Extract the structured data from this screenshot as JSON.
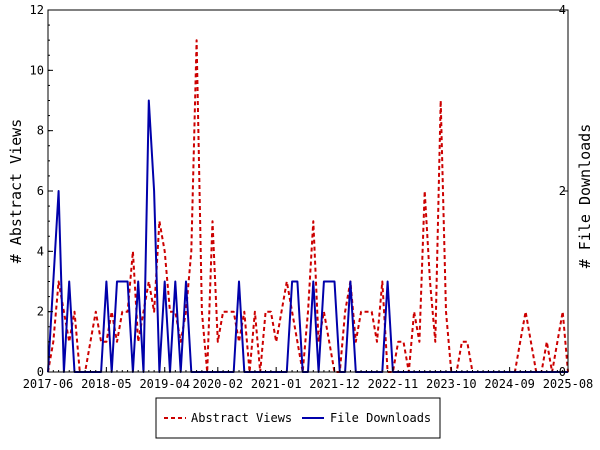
{
  "chart_data": {
    "type": "line",
    "x_ticks": [
      "2017-06",
      "2018-05",
      "2019-04",
      "2020-02",
      "2021-01",
      "2021-12",
      "2022-11",
      "2023-10",
      "2024-09",
      "2025-08"
    ],
    "xlim": [
      "2017-06",
      "2025-08"
    ],
    "left_axis": {
      "label": "# Abstract Views",
      "ylim": [
        0,
        12
      ],
      "ticks": [
        0,
        2,
        4,
        6,
        8,
        10,
        12
      ]
    },
    "right_axis": {
      "label": "# File Downloads",
      "ylim": [
        0,
        4
      ],
      "ticks": [
        0,
        2,
        4
      ]
    },
    "grid": false,
    "legend_position": "bottom-center",
    "series": [
      {
        "name": "Abstract Views",
        "axis": "left",
        "color": "#cc0000",
        "style": "dashed",
        "x": [
          "2017-06",
          "2017-07",
          "2017-08",
          "2017-09",
          "2017-10",
          "2017-11",
          "2017-12",
          "2018-01",
          "2018-02",
          "2018-03",
          "2018-04",
          "2018-05",
          "2018-06",
          "2018-07",
          "2018-08",
          "2018-09",
          "2018-10",
          "2018-11",
          "2018-12",
          "2019-01",
          "2019-02",
          "2019-03",
          "2019-04",
          "2019-05",
          "2019-06",
          "2019-07",
          "2019-08",
          "2019-09",
          "2019-10",
          "2019-11",
          "2019-12",
          "2020-01",
          "2020-02",
          "2020-03",
          "2020-04",
          "2020-05",
          "2020-06",
          "2020-07",
          "2020-08",
          "2020-09",
          "2020-10",
          "2020-11",
          "2020-12",
          "2021-01",
          "2021-02",
          "2021-03",
          "2021-04",
          "2021-05",
          "2021-06",
          "2021-07",
          "2021-08",
          "2021-09",
          "2021-10",
          "2021-11",
          "2021-12",
          "2022-01",
          "2022-02",
          "2022-03",
          "2022-04",
          "2022-05",
          "2022-06",
          "2022-07",
          "2022-08",
          "2022-09",
          "2022-10",
          "2022-11",
          "2022-12",
          "2023-01",
          "2023-02",
          "2023-03",
          "2023-04",
          "2023-05",
          "2023-06",
          "2023-07",
          "2023-08",
          "2023-09",
          "2023-10",
          "2023-11",
          "2023-12",
          "2024-01",
          "2024-02",
          "2024-03",
          "2024-04",
          "2024-05",
          "2024-06",
          "2024-07",
          "2024-08",
          "2024-09",
          "2024-10",
          "2024-11",
          "2024-12",
          "2025-01",
          "2025-02",
          "2025-03",
          "2025-04",
          "2025-05",
          "2025-06",
          "2025-07",
          "2025-08"
        ],
        "values": [
          0,
          1,
          3,
          2,
          1,
          2,
          0,
          0,
          1,
          2,
          1,
          1,
          2,
          1,
          2,
          2,
          4,
          1,
          2,
          3,
          2,
          5,
          4,
          2,
          2,
          1,
          2,
          4,
          11,
          2,
          0,
          5,
          1,
          2,
          2,
          2,
          1,
          2,
          0,
          2,
          0,
          2,
          2,
          1,
          2,
          3,
          2,
          1,
          0,
          2,
          5,
          1,
          2,
          1,
          0,
          0,
          2,
          3,
          1,
          2,
          2,
          2,
          1,
          3,
          0,
          0,
          1,
          1,
          0,
          2,
          1,
          6,
          3,
          1,
          9,
          2,
          0,
          0,
          1,
          1,
          0,
          0,
          0,
          0,
          0,
          0,
          0,
          0,
          0,
          1,
          2,
          1,
          0,
          0,
          1,
          0,
          1,
          2,
          0
        ]
      },
      {
        "name": "File Downloads",
        "axis": "right",
        "color": "#0000aa",
        "style": "solid",
        "x": [
          "2017-06",
          "2017-07",
          "2017-08",
          "2017-09",
          "2017-10",
          "2017-11",
          "2017-12",
          "2018-01",
          "2018-02",
          "2018-03",
          "2018-04",
          "2018-05",
          "2018-06",
          "2018-07",
          "2018-08",
          "2018-09",
          "2018-10",
          "2018-11",
          "2018-12",
          "2019-01",
          "2019-02",
          "2019-03",
          "2019-04",
          "2019-05",
          "2019-06",
          "2019-07",
          "2019-08",
          "2019-09",
          "2019-10",
          "2019-11",
          "2019-12",
          "2020-01",
          "2020-02",
          "2020-03",
          "2020-04",
          "2020-05",
          "2020-06",
          "2020-07",
          "2020-08",
          "2020-09",
          "2020-10",
          "2020-11",
          "2020-12",
          "2021-01",
          "2021-02",
          "2021-03",
          "2021-04",
          "2021-05",
          "2021-06",
          "2021-07",
          "2021-08",
          "2021-09",
          "2021-10",
          "2021-11",
          "2021-12",
          "2022-01",
          "2022-02",
          "2022-03",
          "2022-04",
          "2022-05",
          "2022-06",
          "2022-07",
          "2022-08",
          "2022-09",
          "2022-10",
          "2022-11",
          "2022-12",
          "2023-01",
          "2023-02",
          "2023-03",
          "2023-04",
          "2023-05",
          "2023-06",
          "2023-07",
          "2023-08",
          "2023-09",
          "2023-10",
          "2023-11",
          "2023-12",
          "2024-01",
          "2024-02",
          "2024-03",
          "2024-04",
          "2024-05",
          "2024-06",
          "2024-07",
          "2024-08",
          "2024-09",
          "2024-10",
          "2024-11",
          "2024-12",
          "2025-01",
          "2025-02",
          "2025-03",
          "2025-04",
          "2025-05",
          "2025-06",
          "2025-07",
          "2025-08"
        ],
        "values": [
          0,
          1,
          2,
          0,
          1,
          0,
          0,
          0,
          0,
          0,
          0,
          1,
          0,
          1,
          1,
          1,
          0,
          1,
          0,
          3,
          2,
          0,
          1,
          0,
          1,
          0,
          1,
          0,
          0,
          0,
          0,
          0,
          0,
          0,
          0,
          0,
          1,
          0,
          0,
          0,
          0,
          0,
          0,
          0,
          0,
          0,
          1,
          1,
          0,
          0,
          1,
          0,
          1,
          1,
          1,
          0,
          0,
          1,
          0,
          0,
          0,
          0,
          0,
          0,
          1,
          0,
          0,
          0,
          0,
          0,
          0,
          0,
          0,
          0,
          0,
          0,
          0,
          0,
          0,
          0,
          0,
          0,
          0,
          0,
          0,
          0,
          0,
          0,
          0,
          0,
          0,
          0,
          0,
          0,
          0,
          0,
          0,
          0,
          0
        ]
      }
    ]
  }
}
